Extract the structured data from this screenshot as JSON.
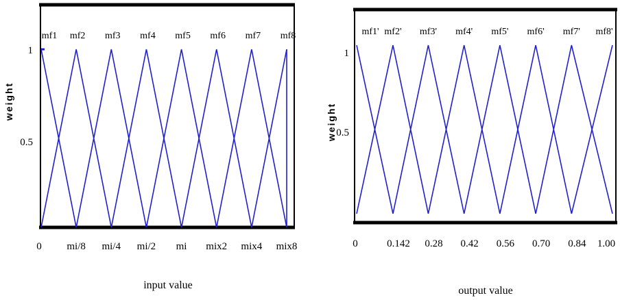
{
  "chart_data": [
    {
      "type": "line",
      "xlabel": "input value",
      "ylabel": "weight",
      "ylim": [
        0,
        1
      ],
      "y_ticks": [
        "0.5",
        "1"
      ],
      "origin_label": "0",
      "x_ticks": [
        "mi/8",
        "mi/4",
        "mi/2",
        "mi",
        "mix2",
        "mix4",
        "mix8"
      ],
      "mf_labels": [
        "mf1",
        "mf2",
        "mf3",
        "mf4",
        "mf5",
        "mf6",
        "mf7",
        "mf8"
      ],
      "peaks_index": [
        0,
        1,
        2,
        3,
        4,
        5,
        6,
        7
      ],
      "line_color": "#1f1fd0"
    },
    {
      "type": "line",
      "xlabel": "output value",
      "ylabel": "weight",
      "ylim": [
        0,
        1
      ],
      "y_ticks": [
        "0.5",
        "1"
      ],
      "x_ticks": [
        "0",
        "0.142",
        "0.28",
        "0.42",
        "0.56",
        "0.70",
        "0.84",
        "1.00"
      ],
      "mf_labels": [
        "mf1'",
        "mf2'",
        "mf3'",
        "mf4'",
        "mf5'",
        "mf6'",
        "mf7'",
        "mf8'"
      ],
      "peaks_x": [
        0,
        0.142,
        0.28,
        0.42,
        0.56,
        0.7,
        0.84,
        1.0
      ],
      "line_color": "#1f1fd0"
    }
  ]
}
